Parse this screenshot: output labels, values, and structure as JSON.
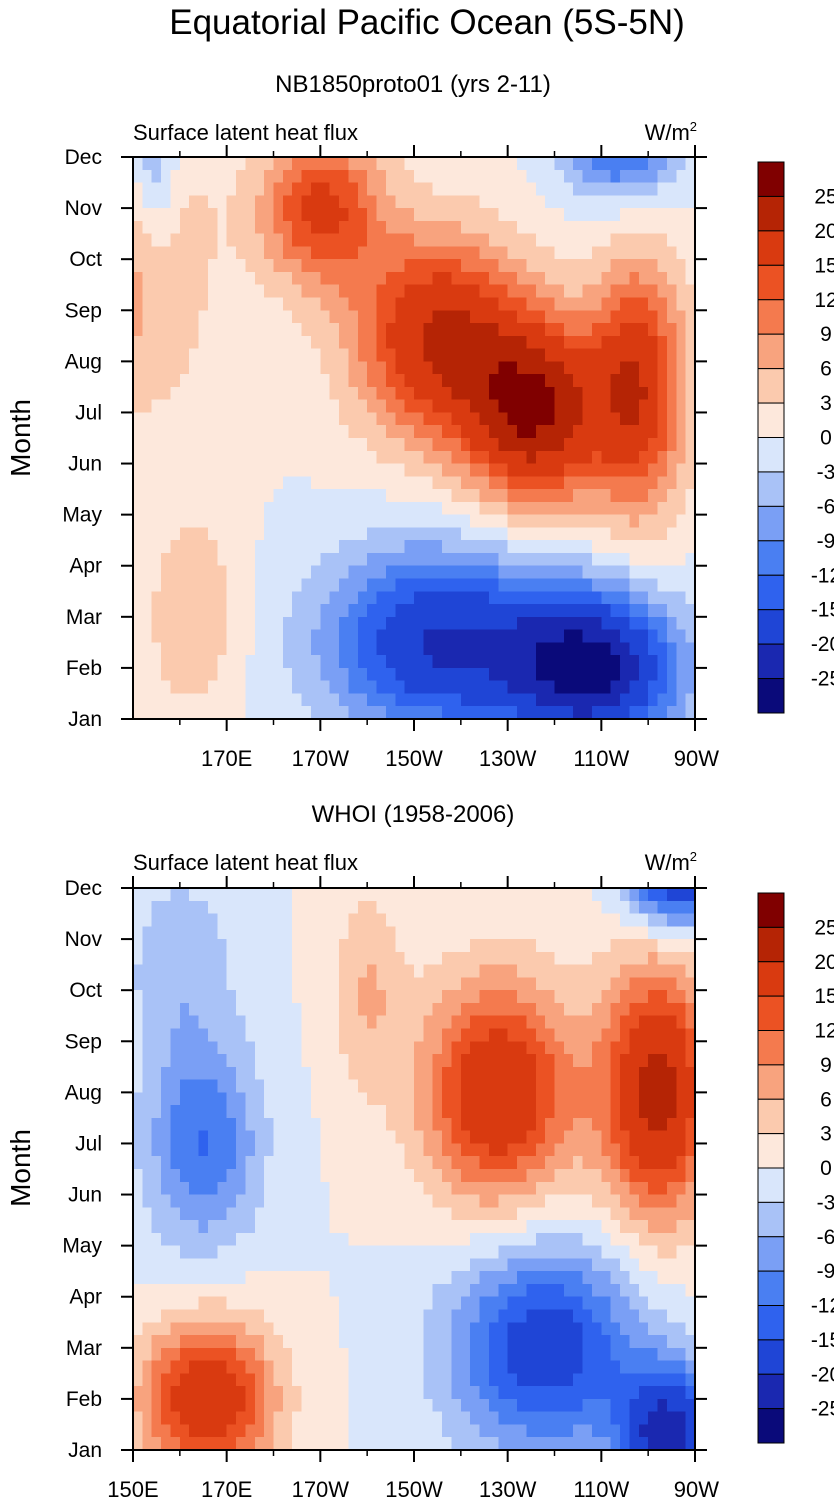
{
  "figure": {
    "title": "Equatorial Pacific Ocean (5S-5N)"
  },
  "chart_data": [
    {
      "type": "heatmap",
      "subtitle": "NB1850proto01 (yrs 2-11)",
      "left_label": "Surface latent heat flux",
      "units": "W/m",
      "units_sup": "2",
      "ylabel": "Month",
      "xlabel": "",
      "y_ticks": [
        "Jan",
        "Feb",
        "Mar",
        "Apr",
        "May",
        "Jun",
        "Jul",
        "Aug",
        "Sep",
        "Oct",
        "Nov",
        "Dec"
      ],
      "x_range_deg_east": [
        150,
        270
      ],
      "x_ticks": [
        {
          "label": "170E",
          "lon": 170
        },
        {
          "label": "170W",
          "lon": 190
        },
        {
          "label": "150W",
          "lon": 210
        },
        {
          "label": "130W",
          "lon": 230
        },
        {
          "label": "110W",
          "lon": 250
        },
        {
          "label": "90W",
          "lon": 270
        }
      ],
      "fields": [
        {
          "lon": 150,
          "month": 10,
          "amp": 8,
          "spread_lon": 16,
          "spread_month": 3
        },
        {
          "lon": 163,
          "month": 3,
          "amp": 6,
          "spread_lon": 10,
          "spread_month": 2
        },
        {
          "lon": 190,
          "month": 11,
          "amp": 16,
          "spread_lon": 13,
          "spread_month": 1.5
        },
        {
          "lon": 215,
          "month": 8.5,
          "amp": 20,
          "spread_lon": 18,
          "spread_month": 2
        },
        {
          "lon": 236,
          "month": 7,
          "amp": 24,
          "spread_lon": 15,
          "spread_month": 1.8
        },
        {
          "lon": 258,
          "month": 7.5,
          "amp": 18,
          "spread_lon": 10,
          "spread_month": 2.5
        },
        {
          "lon": 215,
          "month": 2.5,
          "amp": -20,
          "spread_lon": 24,
          "spread_month": 1.8
        },
        {
          "lon": 248,
          "month": 2,
          "amp": -26,
          "spread_lon": 18,
          "spread_month": 1.5
        },
        {
          "lon": 254,
          "month": 12.2,
          "amp": -14,
          "spread_lon": 12,
          "spread_month": 1
        },
        {
          "lon": 154,
          "month": 12,
          "amp": -9,
          "spread_lon": 6,
          "spread_month": 2
        }
      ],
      "colorbar_labels": [
        "25",
        "20",
        "15",
        "12",
        "9",
        "6",
        "3",
        "0",
        "-3",
        "-6",
        "-9",
        "-12",
        "-15",
        "-20",
        "-25"
      ]
    },
    {
      "type": "heatmap",
      "subtitle": "WHOI (1958-2006)",
      "left_label": "Surface latent heat flux",
      "units": "W/m",
      "units_sup": "2",
      "ylabel": "Month",
      "xlabel": "",
      "y_ticks": [
        "Jan",
        "Feb",
        "Mar",
        "Apr",
        "May",
        "Jun",
        "Jul",
        "Aug",
        "Sep",
        "Oct",
        "Nov",
        "Dec"
      ],
      "x_range_deg_east": [
        150,
        270
      ],
      "x_ticks": [
        {
          "label": "150E",
          "lon": 150
        },
        {
          "label": "170E",
          "lon": 170
        },
        {
          "label": "170W",
          "lon": 190
        },
        {
          "label": "150W",
          "lon": 210
        },
        {
          "label": "130W",
          "lon": 230
        },
        {
          "label": "110W",
          "lon": 250
        },
        {
          "label": "90W",
          "lon": 270
        }
      ],
      "fields": [
        {
          "lon": 166,
          "month": 2,
          "amp": 20,
          "spread_lon": 14,
          "spread_month": 1.5
        },
        {
          "lon": 228,
          "month": 8,
          "amp": 20,
          "spread_lon": 16,
          "spread_month": 2.2
        },
        {
          "lon": 262,
          "month": 8,
          "amp": 22,
          "spread_lon": 12,
          "spread_month": 2.5
        },
        {
          "lon": 200,
          "month": 10,
          "amp": 6,
          "spread_lon": 8,
          "spread_month": 2
        },
        {
          "lon": 165,
          "month": 7,
          "amp": -12,
          "spread_lon": 12,
          "spread_month": 2
        },
        {
          "lon": 238,
          "month": 3,
          "amp": -18,
          "spread_lon": 20,
          "spread_month": 2
        },
        {
          "lon": 264,
          "month": 1.3,
          "amp": -22,
          "spread_lon": 10,
          "spread_month": 1.3
        },
        {
          "lon": 266,
          "month": 12.2,
          "amp": -20,
          "spread_lon": 10,
          "spread_month": 1
        },
        {
          "lon": 160,
          "month": 10.5,
          "amp": -5,
          "spread_lon": 12,
          "spread_month": 2
        }
      ],
      "colorbar_labels": [
        "25",
        "20",
        "15",
        "12",
        "9",
        "6",
        "3",
        "0",
        "-3",
        "-6",
        "-9",
        "-12",
        "-15",
        "-20",
        "-25"
      ]
    }
  ],
  "colorscale": {
    "levels": [
      -25,
      -20,
      -15,
      -12,
      -9,
      -6,
      -3,
      0,
      3,
      6,
      9,
      12,
      15,
      20,
      25
    ],
    "colors": [
      "#0a0a7a",
      "#1a28b0",
      "#1f45d6",
      "#2f62ee",
      "#4a7ff2",
      "#7a9ff5",
      "#a9c2f7",
      "#d9e6fb",
      "#fde8dc",
      "#fbcaae",
      "#f8a37e",
      "#f47a4e",
      "#eb5223",
      "#d93a10",
      "#b52405",
      "#800000"
    ]
  }
}
